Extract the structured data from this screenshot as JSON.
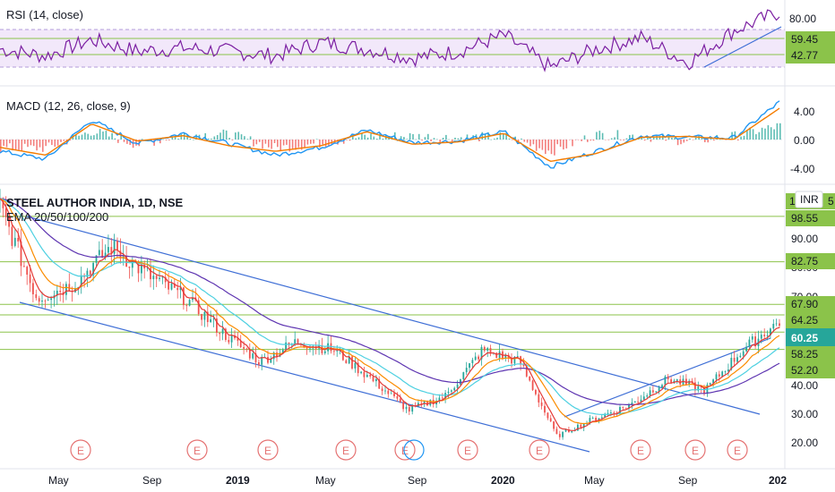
{
  "colors": {
    "rsi_line": "#7b1fa2",
    "rsi_band": "#e8d6f5",
    "macd_line": "#2196f3",
    "macd_signal": "#f57c00",
    "hist_pos": "#26a69a",
    "hist_neg": "#ef5350",
    "channel": "#3f6fd6",
    "hline": "#8bc34a",
    "ema20": "#e53935",
    "ema50": "#fb8c00",
    "ema100": "#4dd0e1",
    "ema200": "#5e35b1",
    "candle_up": "#26a69a",
    "candle_down": "#ef5350",
    "earnings": "#e57373",
    "price_badge": "#26a69a",
    "level_badge": "#8bc34a"
  },
  "panes": {
    "rsi": {
      "title": "RSI (14, close)",
      "ticks": [
        "80.00"
      ],
      "levels": [
        "59.45",
        "42.77"
      ]
    },
    "macd": {
      "title": "MACD (12, 26, close, 9)",
      "ticks": [
        "4.00",
        "0.00",
        "-4.00"
      ]
    },
    "price": {
      "title": "STEEL AUTHOR INDIA, 1D, NSE",
      "subtitle": "EMA 20/50/100/200",
      "currency": "INR",
      "top_level_partial": "1",
      "top_level_partial_right": "5",
      "ticks": [
        "90.00",
        "80.00",
        "70.00",
        "40.00",
        "30.00",
        "20.00"
      ],
      "levels": [
        "98.55",
        "82.75",
        "67.90",
        "64.25",
        "58.25",
        "52.20"
      ],
      "last_price": "60.25"
    }
  },
  "earnings_marker": "E",
  "x_axis": [
    "May",
    "Sep",
    "2019",
    "May",
    "Sep",
    "2020",
    "May",
    "Sep",
    "202"
  ],
  "chart_data": [
    {
      "type": "line",
      "title": "RSI (14, close)",
      "ylim": [
        20,
        90
      ],
      "x": [
        "2018-03",
        "2018-05",
        "2018-07",
        "2018-09",
        "2018-11",
        "2019-01",
        "2019-03",
        "2019-05",
        "2019-07",
        "2019-09",
        "2019-11",
        "2020-01",
        "2020-03",
        "2020-05",
        "2020-07",
        "2020-09",
        "2020-11",
        "2020-12"
      ],
      "series": [
        {
          "values": [
            52,
            46,
            60,
            50,
            53,
            50,
            46,
            58,
            52,
            44,
            50,
            64,
            36,
            52,
            62,
            40,
            68,
            84
          ]
        }
      ],
      "reference_levels": [
        80,
        59.45,
        42.77
      ]
    },
    {
      "type": "line",
      "title": "MACD (12, 26, close, 9)",
      "ylim": [
        -5.5,
        5.5
      ],
      "x": [
        "2018-03",
        "2018-05",
        "2018-07",
        "2018-09",
        "2018-11",
        "2019-01",
        "2019-03",
        "2019-05",
        "2019-07",
        "2019-09",
        "2019-11",
        "2020-01",
        "2020-03",
        "2020-05",
        "2020-07",
        "2020-09",
        "2020-11",
        "2020-12"
      ],
      "series": [
        {
          "values": [
            -1.5,
            -2.5,
            2.5,
            -0.5,
            0.8,
            -0.5,
            -2.0,
            -1.0,
            1.2,
            -0.4,
            -0.2,
            1.0,
            -3.5,
            -1.5,
            0.5,
            0.3,
            0.2,
            4.8
          ]
        },
        {
          "values": [
            -1.0,
            -2.0,
            2.0,
            -0.2,
            0.5,
            -0.8,
            -1.5,
            -0.8,
            1.0,
            -0.6,
            -0.3,
            0.8,
            -2.8,
            -1.8,
            0.3,
            0.4,
            0.0,
            4.0
          ]
        }
      ],
      "ticks": [
        4,
        0,
        -4
      ]
    },
    {
      "type": "line",
      "title": "STEEL AUTHOR INDIA, 1D, NSE",
      "subtitle": "EMA 20/50/100/200",
      "ylim": [
        15,
        110
      ],
      "x": [
        "2018-03",
        "2018-04",
        "2018-06",
        "2018-07",
        "2018-08",
        "2018-10",
        "2018-12",
        "2019-02",
        "2019-04",
        "2019-06",
        "2019-08",
        "2019-09",
        "2019-11",
        "2020-01",
        "2020-02",
        "2020-03",
        "2020-05",
        "2020-07",
        "2020-09",
        "2020-10",
        "2020-11",
        "2020-12"
      ],
      "series": [
        {
          "values": [
            102,
            70,
            75,
            88,
            78,
            70,
            58,
            48,
            55,
            52,
            42,
            31,
            36,
            52,
            48,
            22,
            28,
            33,
            42,
            38,
            52,
            62
          ]
        }
      ],
      "horizontal_levels": [
        98.55,
        82.75,
        67.9,
        64.25,
        58.25,
        52.2
      ],
      "last_price": 60.25,
      "ticks": [
        90,
        80,
        70,
        40,
        30,
        20
      ]
    }
  ]
}
